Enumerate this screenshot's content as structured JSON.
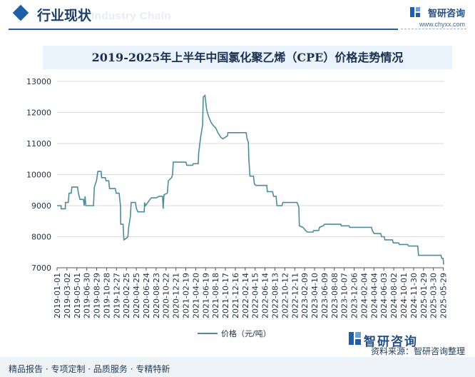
{
  "header": {
    "section_title": "行业现状",
    "section_subtitle": "Industry Chain",
    "brand_name": "智研咨询",
    "brand_url": "www.chyxx.com"
  },
  "chart_data": {
    "type": "line",
    "title": "2019-2025年上半年中国氯化聚乙烯（CPE）价格走势情况",
    "ylim": [
      7000,
      13000
    ],
    "y_ticks": [
      "7000",
      "8000",
      "9000",
      "10000",
      "11000",
      "12000",
      "13000"
    ],
    "x_ticks": [
      "2019-01-01",
      "2019-03-02",
      "2019-05-01",
      "2019-06-30",
      "2019-08-29",
      "2019-10-28",
      "2019-12-27",
      "2020-02-25",
      "2020-04-25",
      "2020-06-24",
      "2020-08-23",
      "2020-10-22",
      "2020-12-21",
      "2021-02-19",
      "2021-04-20",
      "2021-06-19",
      "2021-08-18",
      "2021-10-17",
      "2021-12-16",
      "2022-02-14",
      "2022-04-15",
      "2022-06-14",
      "2022-08-13",
      "2022-10-12",
      "2022-12-11",
      "2023-02-09",
      "2023-04-10",
      "2023-06-09",
      "2023-08-08",
      "2023-10-07",
      "2023-12-06",
      "2024-02-04",
      "2024-04-04",
      "2024-06-03",
      "2024-08-02",
      "2024-10-01",
      "2024-11-30",
      "2025-01-29",
      "2025-03-30",
      "2025-05-29"
    ],
    "grid": "horizontal",
    "legend_position": "bottom",
    "series": [
      {
        "name": "价格（元/吨）",
        "color": "#4e8c9c",
        "points": [
          [
            "2019-01-01",
            9000
          ],
          [
            "2019-01-25",
            9000
          ],
          [
            "2019-01-26",
            8900
          ],
          [
            "2019-02-20",
            8900
          ],
          [
            "2019-02-21",
            9100
          ],
          [
            "2019-03-10",
            9100
          ],
          [
            "2019-03-15",
            9400
          ],
          [
            "2019-03-28",
            9400
          ],
          [
            "2019-04-01",
            9600
          ],
          [
            "2019-05-05",
            9600
          ],
          [
            "2019-05-10",
            9400
          ],
          [
            "2019-05-20",
            9200
          ],
          [
            "2019-06-10",
            9200
          ],
          [
            "2019-06-14",
            9000
          ],
          [
            "2019-06-20",
            9300
          ],
          [
            "2019-06-24",
            9000
          ],
          [
            "2019-08-10",
            9000
          ],
          [
            "2019-08-15",
            9600
          ],
          [
            "2019-08-28",
            9800
          ],
          [
            "2019-09-05",
            10100
          ],
          [
            "2019-09-25",
            10100
          ],
          [
            "2019-09-28",
            9900
          ],
          [
            "2019-10-20",
            9900
          ],
          [
            "2019-10-25",
            9800
          ],
          [
            "2019-11-10",
            9800
          ],
          [
            "2019-11-15",
            9550
          ],
          [
            "2019-12-20",
            9550
          ],
          [
            "2019-12-25",
            9400
          ],
          [
            "2020-01-12",
            9400
          ],
          [
            "2020-01-20",
            9000
          ],
          [
            "2020-01-22",
            8400
          ],
          [
            "2020-02-05",
            8400
          ],
          [
            "2020-02-10",
            7900
          ],
          [
            "2020-02-25",
            7950
          ],
          [
            "2020-03-05",
            8000
          ],
          [
            "2020-03-10",
            8300
          ],
          [
            "2020-03-20",
            8650
          ],
          [
            "2020-03-25",
            9100
          ],
          [
            "2020-04-20",
            9100
          ],
          [
            "2020-04-26",
            8900
          ],
          [
            "2020-05-05",
            8800
          ],
          [
            "2020-06-12",
            8800
          ],
          [
            "2020-06-14",
            9100
          ],
          [
            "2020-06-20",
            9000
          ],
          [
            "2020-07-10",
            9150
          ],
          [
            "2020-07-25",
            9250
          ],
          [
            "2020-08-25",
            9250
          ],
          [
            "2020-09-10",
            9300
          ],
          [
            "2020-10-01",
            9300
          ],
          [
            "2020-10-05",
            8900
          ],
          [
            "2020-10-10",
            9350
          ],
          [
            "2020-10-30",
            9400
          ],
          [
            "2020-11-05",
            9800
          ],
          [
            "2020-11-25",
            9900
          ],
          [
            "2020-12-01",
            10000
          ],
          [
            "2020-12-05",
            10400
          ],
          [
            "2021-02-20",
            10400
          ],
          [
            "2021-02-25",
            10300
          ],
          [
            "2021-04-01",
            10300
          ],
          [
            "2021-04-05",
            10350
          ],
          [
            "2021-05-05",
            10350
          ],
          [
            "2021-05-08",
            10700
          ],
          [
            "2021-05-20",
            11200
          ],
          [
            "2021-06-01",
            11600
          ],
          [
            "2021-06-05",
            12500
          ],
          [
            "2021-06-15",
            12550
          ],
          [
            "2021-06-25",
            12100
          ],
          [
            "2021-07-05",
            11900
          ],
          [
            "2021-07-20",
            11700
          ],
          [
            "2021-08-01",
            11600
          ],
          [
            "2021-08-20",
            11500
          ],
          [
            "2021-09-01",
            11350
          ],
          [
            "2021-09-20",
            11200
          ],
          [
            "2021-10-01",
            11150
          ],
          [
            "2021-10-30",
            11250
          ],
          [
            "2021-11-01",
            11350
          ],
          [
            "2022-02-20",
            11350
          ],
          [
            "2022-02-25",
            11150
          ],
          [
            "2022-03-05",
            11050
          ],
          [
            "2022-03-08",
            10500
          ],
          [
            "2022-03-15",
            9950
          ],
          [
            "2022-04-05",
            9950
          ],
          [
            "2022-04-10",
            9700
          ],
          [
            "2022-04-20",
            9650
          ],
          [
            "2022-06-25",
            9650
          ],
          [
            "2022-06-28",
            9450
          ],
          [
            "2022-07-30",
            9450
          ],
          [
            "2022-08-05",
            9300
          ],
          [
            "2022-08-20",
            9300
          ],
          [
            "2022-08-25",
            9000
          ],
          [
            "2022-09-25",
            9000
          ],
          [
            "2022-09-30",
            9100
          ],
          [
            "2022-12-25",
            9100
          ],
          [
            "2023-01-05",
            8950
          ],
          [
            "2023-01-08",
            8350
          ],
          [
            "2023-01-30",
            8300
          ],
          [
            "2023-02-15",
            8200
          ],
          [
            "2023-02-25",
            8150
          ],
          [
            "2023-04-01",
            8150
          ],
          [
            "2023-04-05",
            8200
          ],
          [
            "2023-05-05",
            8200
          ],
          [
            "2023-05-10",
            8300
          ],
          [
            "2023-06-01",
            8350
          ],
          [
            "2023-06-10",
            8400
          ],
          [
            "2023-09-15",
            8400
          ],
          [
            "2023-09-20",
            8350
          ],
          [
            "2023-11-05",
            8350
          ],
          [
            "2023-11-10",
            8300
          ],
          [
            "2024-03-20",
            8300
          ],
          [
            "2024-03-25",
            8200
          ],
          [
            "2024-04-05",
            8100
          ],
          [
            "2024-05-15",
            8100
          ],
          [
            "2024-05-20",
            8000
          ],
          [
            "2024-06-05",
            8000
          ],
          [
            "2024-06-10",
            7900
          ],
          [
            "2024-07-25",
            7900
          ],
          [
            "2024-07-30",
            7800
          ],
          [
            "2024-09-01",
            7800
          ],
          [
            "2024-09-05",
            7750
          ],
          [
            "2024-10-25",
            7750
          ],
          [
            "2024-10-30",
            7700
          ],
          [
            "2024-12-25",
            7700
          ],
          [
            "2024-12-30",
            7400
          ],
          [
            "2025-05-15",
            7400
          ],
          [
            "2025-05-20",
            7300
          ],
          [
            "2025-05-28",
            7300
          ],
          [
            "2025-05-31",
            7100
          ]
        ]
      }
    ]
  },
  "footer": {
    "services": "精品报告 · 专项定制 · 品质服务 · 专精特新",
    "source": "资料来源：智研咨询整理",
    "logo_name": "智研咨询"
  }
}
